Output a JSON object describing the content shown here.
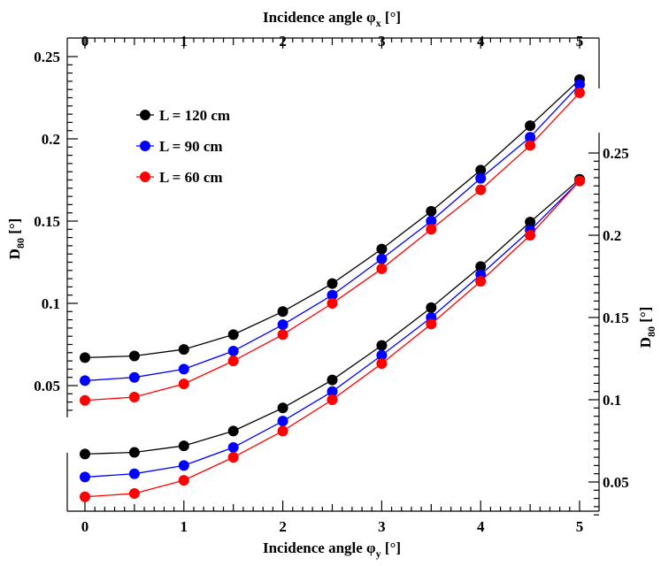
{
  "chart_data": {
    "type": "line",
    "x": [
      0,
      0.5,
      1,
      1.5,
      2,
      2.5,
      3,
      3.5,
      4,
      4.5,
      5
    ],
    "colors": {
      "L120": "#000000",
      "L90": "#0000ff",
      "L60": "#ff0000"
    },
    "upper_panel": {
      "title": "Incidence angle φx [°]",
      "xlabel_main": "Incidence angle φ",
      "xlabel_sub": "x",
      "xlabel_tail": " [°]",
      "ylabel_main": "D",
      "ylabel_sub": "80",
      "ylabel_tail": " [°]",
      "ylim": [
        0.02,
        0.25
      ],
      "xlim": [
        -0.18,
        5.15
      ],
      "xticks": [
        "0",
        "1",
        "2",
        "3",
        "4",
        "5"
      ],
      "yticks": [
        "0.05",
        "0.1",
        "0.15",
        "0.2",
        "0.25"
      ],
      "series": [
        {
          "name": "L = 120 cm",
          "color": "#000000",
          "values": [
            0.067,
            0.068,
            0.072,
            0.081,
            0.095,
            0.112,
            0.133,
            0.156,
            0.181,
            0.208,
            0.236
          ]
        },
        {
          "name": "L = 90 cm",
          "color": "#0000ff",
          "values": [
            0.053,
            0.055,
            0.06,
            0.071,
            0.087,
            0.105,
            0.127,
            0.15,
            0.176,
            0.201,
            0.233
          ]
        },
        {
          "name": "L = 60 cm",
          "color": "#ff0000",
          "values": [
            0.041,
            0.043,
            0.051,
            0.065,
            0.081,
            0.1,
            0.121,
            0.145,
            0.169,
            0.196,
            0.228
          ]
        }
      ]
    },
    "lower_panel": {
      "title": "Incidence angle φy [°]",
      "xlabel_main": "Incidence angle φ",
      "xlabel_sub": "y",
      "xlabel_tail": " [°]",
      "ylabel_main": "D",
      "ylabel_sub": "80",
      "ylabel_tail": " [°]",
      "ylim": [
        0.03,
        0.25
      ],
      "xlim": [
        -0.18,
        5.15
      ],
      "xticks": [
        "0",
        "1",
        "2",
        "3",
        "4",
        "5"
      ],
      "yticks": [
        "0.05",
        "0.1",
        "0.15",
        "0.2",
        "0.25"
      ],
      "series": [
        {
          "name": "L = 120 cm",
          "color": "#000000",
          "values": [
            0.067,
            0.068,
            0.072,
            0.081,
            0.095,
            0.112,
            0.133,
            0.156,
            0.181,
            0.208,
            0.234
          ]
        },
        {
          "name": "L = 90 cm",
          "color": "#0000ff",
          "values": [
            0.053,
            0.055,
            0.06,
            0.071,
            0.087,
            0.105,
            0.127,
            0.15,
            0.176,
            0.203,
            0.233
          ]
        },
        {
          "name": "L = 60 cm",
          "color": "#ff0000",
          "values": [
            0.041,
            0.043,
            0.051,
            0.065,
            0.081,
            0.1,
            0.122,
            0.146,
            0.172,
            0.2,
            0.233
          ]
        }
      ]
    },
    "legend": {
      "placement": "top-left",
      "entries": [
        "L = 120 cm",
        "L = 90 cm",
        "L = 60 cm"
      ]
    }
  }
}
